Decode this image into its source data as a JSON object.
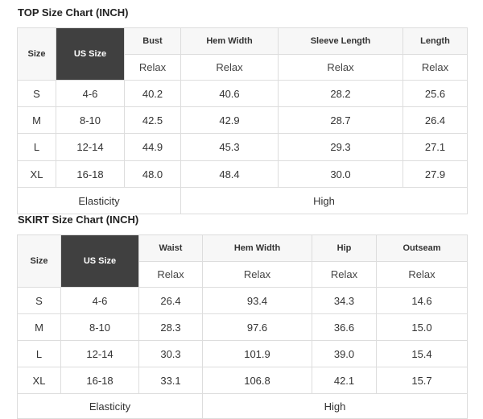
{
  "top": {
    "title": "TOP Size Chart (INCH)",
    "headers": [
      "Size",
      "US Size",
      "Bust",
      "Hem Width",
      "Sleeve Length",
      "Length"
    ],
    "sub": [
      "Relax",
      "Relax",
      "Relax",
      "Relax"
    ],
    "rows": [
      [
        "S",
        "4-6",
        "40.2",
        "40.6",
        "28.2",
        "25.6"
      ],
      [
        "M",
        "8-10",
        "42.5",
        "42.9",
        "28.7",
        "26.4"
      ],
      [
        "L",
        "12-14",
        "44.9",
        "45.3",
        "29.3",
        "27.1"
      ],
      [
        "XL",
        "16-18",
        "48.0",
        "48.4",
        "30.0",
        "27.9"
      ]
    ],
    "footer": [
      "Elasticity",
      "High"
    ]
  },
  "skirt": {
    "title": "SKIRT Size Chart (INCH)",
    "headers": [
      "Size",
      "US Size",
      "Waist",
      "Hem Width",
      "Hip",
      "Outseam"
    ],
    "sub": [
      "Relax",
      "Relax",
      "Relax",
      "Relax"
    ],
    "rows": [
      [
        "S",
        "4-6",
        "26.4",
        "93.4",
        "34.3",
        "14.6"
      ],
      [
        "M",
        "8-10",
        "28.3",
        "97.6",
        "36.6",
        "15.0"
      ],
      [
        "L",
        "12-14",
        "30.3",
        "101.9",
        "39.0",
        "15.4"
      ],
      [
        "XL",
        "16-18",
        "33.1",
        "106.8",
        "42.1",
        "15.7"
      ]
    ],
    "footer": [
      "Elasticity",
      "High"
    ]
  },
  "colors": {
    "us_size_header": "#404040",
    "header_bg": "#f7f7f7",
    "border": "#dddddd"
  }
}
